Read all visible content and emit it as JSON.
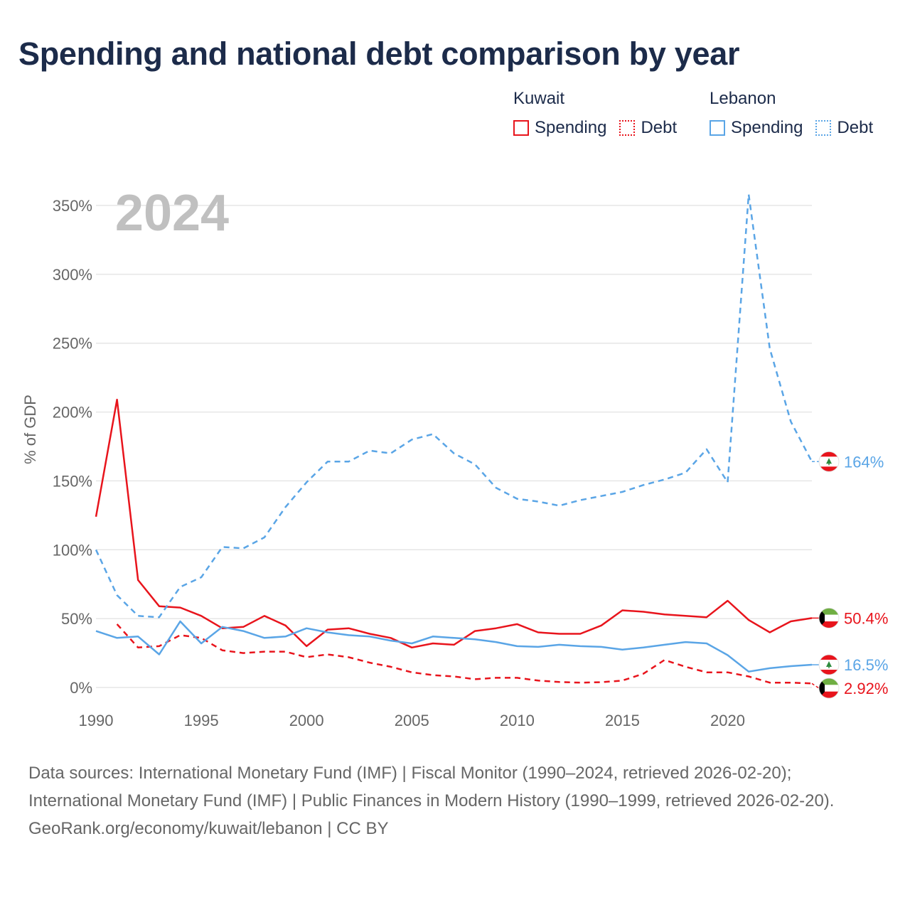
{
  "title": "Spending and national debt comparison by year",
  "legend": {
    "groups": [
      {
        "country": "Kuwait",
        "items": [
          "Spending",
          "Debt"
        ],
        "color": "#e8141c"
      },
      {
        "country": "Lebanon",
        "items": [
          "Spending",
          "Debt"
        ],
        "color": "#5aa5e6"
      }
    ]
  },
  "footer": {
    "sources": "Data sources: International Monetary Fund (IMF) | Fiscal Monitor (1990–2024, retrieved 2026-02-20); International Monetary Fund (IMF) | Public Finances in Modern History (1990–1999, retrieved 2026-02-20).",
    "credit": "GeoRank.org/economy/kuwait/lebanon | CC BY"
  },
  "chart_data": {
    "type": "line",
    "year_label": "2024",
    "ylabel": "% of GDP",
    "xlabel": "",
    "xlim": [
      1990,
      2024
    ],
    "ylim": [
      0,
      350
    ],
    "x_ticks": [
      1990,
      1995,
      2000,
      2005,
      2010,
      2015,
      2020
    ],
    "y_ticks": [
      0,
      50,
      100,
      150,
      200,
      250,
      300,
      350
    ],
    "y_tick_labels": [
      "0%",
      "50%",
      "100%",
      "150%",
      "200%",
      "250%",
      "300%",
      "350%"
    ],
    "series": [
      {
        "name": "Kuwait Spending",
        "country": "Kuwait",
        "color": "#e8141c",
        "dash": false,
        "flag": "kuwait",
        "end_label": "50.4%",
        "x": [
          1990,
          1991,
          1992,
          1993,
          1994,
          1995,
          1996,
          1997,
          1998,
          1999,
          2000,
          2001,
          2002,
          2003,
          2004,
          2005,
          2006,
          2007,
          2008,
          2009,
          2010,
          2011,
          2012,
          2013,
          2014,
          2015,
          2016,
          2017,
          2018,
          2019,
          2020,
          2021,
          2022,
          2023,
          2024
        ],
        "values": [
          124,
          209,
          78,
          59,
          58,
          52,
          43,
          44,
          52,
          45,
          30,
          42,
          43,
          39,
          36,
          29,
          32,
          31,
          41,
          43,
          46,
          40,
          39,
          39,
          45,
          56,
          55,
          53,
          52,
          51,
          63,
          49,
          40,
          48,
          50.4
        ]
      },
      {
        "name": "Kuwait Debt",
        "country": "Kuwait",
        "color": "#e8141c",
        "dash": true,
        "flag": "kuwait",
        "end_label": "2.92%",
        "x": [
          1991,
          1992,
          1993,
          1994,
          1995,
          1996,
          1997,
          1998,
          1999,
          2000,
          2001,
          2002,
          2003,
          2004,
          2005,
          2006,
          2007,
          2008,
          2009,
          2010,
          2011,
          2012,
          2013,
          2014,
          2015,
          2016,
          2017,
          2018,
          2019,
          2020,
          2021,
          2022,
          2023,
          2024
        ],
        "values": [
          46,
          29,
          30,
          38,
          36,
          27,
          25,
          26,
          26,
          22,
          24,
          22,
          18,
          15,
          11,
          9,
          8,
          6,
          7,
          7,
          5,
          4,
          3.5,
          3.8,
          5,
          10,
          20,
          15,
          11,
          11,
          8,
          3.5,
          3.5,
          2.92
        ]
      },
      {
        "name": "Lebanon Spending",
        "country": "Lebanon",
        "color": "#5aa5e6",
        "dash": false,
        "flag": "lebanon",
        "end_label": "16.5%",
        "x": [
          1990,
          1991,
          1992,
          1993,
          1994,
          1995,
          1996,
          1997,
          1998,
          1999,
          2000,
          2001,
          2002,
          2003,
          2004,
          2005,
          2006,
          2007,
          2008,
          2009,
          2010,
          2011,
          2012,
          2013,
          2014,
          2015,
          2016,
          2017,
          2018,
          2019,
          2020,
          2021,
          2022,
          2023,
          2024
        ],
        "values": [
          41,
          36,
          37,
          24,
          48,
          32,
          44,
          41,
          36,
          37,
          43,
          40,
          38,
          37,
          34,
          32,
          37,
          36,
          35,
          33,
          30,
          29.5,
          31,
          30,
          29.5,
          27.5,
          29,
          31,
          33,
          32,
          23.5,
          11.5,
          14,
          15.5,
          16.5
        ]
      },
      {
        "name": "Lebanon Debt",
        "country": "Lebanon",
        "color": "#5aa5e6",
        "dash": true,
        "flag": "lebanon",
        "end_label": "164%",
        "x": [
          1990,
          1991,
          1992,
          1993,
          1994,
          1995,
          1996,
          1997,
          1998,
          1999,
          2000,
          2001,
          2002,
          2003,
          2004,
          2005,
          2006,
          2007,
          2008,
          2009,
          2010,
          2011,
          2012,
          2013,
          2014,
          2015,
          2016,
          2017,
          2018,
          2019,
          2020,
          2021,
          2022,
          2023,
          2024
        ],
        "values": [
          100,
          67,
          52,
          51,
          73,
          80,
          102,
          101,
          109,
          131,
          149,
          164,
          164,
          172,
          170,
          180,
          184,
          170,
          162,
          145,
          137,
          135,
          132,
          136,
          139,
          142,
          147,
          151,
          156,
          173,
          149,
          358,
          246,
          193,
          164
        ]
      }
    ]
  }
}
